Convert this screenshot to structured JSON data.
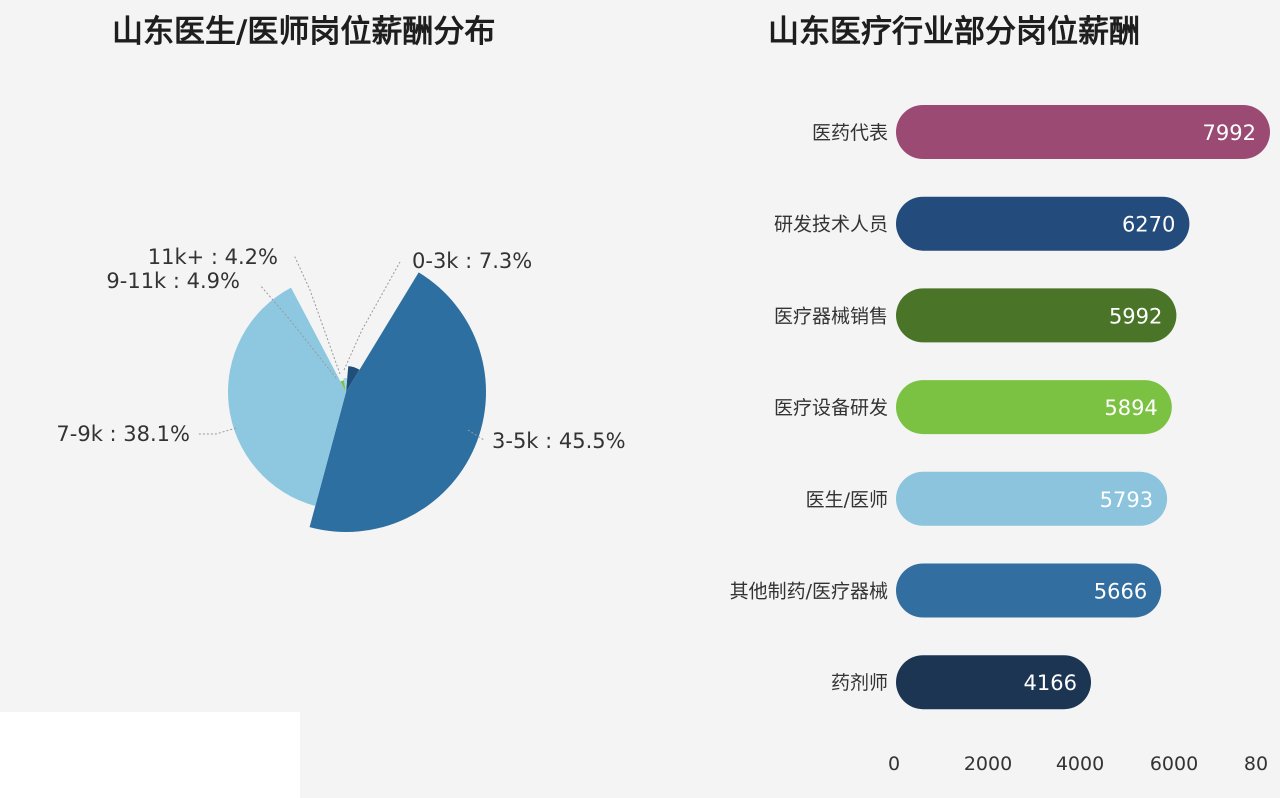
{
  "chart_data": [
    {
      "type": "pie",
      "title": "山东医生/医师岗位薪酬分布",
      "slices": [
        {
          "name": "0-3k",
          "value": 7.3,
          "label": "0-3k : 7.3%",
          "color": "#1f4f7a"
        },
        {
          "name": "3-5k",
          "value": 45.5,
          "label": "3-5k : 45.5%",
          "color": "#2c6fa0"
        },
        {
          "name": "7-9k",
          "value": 38.1,
          "label": "7-9k : 38.1%",
          "color": "#8ec8e0"
        },
        {
          "name": "9-11k",
          "value": 4.9,
          "label": "9-11k : 4.9%",
          "color": "#7fc24a"
        },
        {
          "name": "11k+",
          "value": 4.2,
          "label": "11k+ : 4.2%",
          "color": "#a7d6e6"
        }
      ]
    },
    {
      "type": "bar",
      "orientation": "horizontal",
      "title": "山东医疗行业部分岗位薪酬",
      "categories": [
        "医药代表",
        "研发技术人员",
        "医疗器械销售",
        "医疗设备研发",
        "医生/医师",
        "其他制药/医疗器械",
        "药剂师"
      ],
      "values": [
        7992,
        6270,
        5992,
        5894,
        5793,
        5666,
        4166
      ],
      "value_labels": [
        "7992",
        "6270",
        "5992",
        "5894",
        "5793",
        "5666",
        "4166"
      ],
      "colors": [
        "#9a4a73",
        "#234b7b",
        "#4a7528",
        "#7cc242",
        "#8bc4dc",
        "#326e9f",
        "#1b3553"
      ],
      "xlim": [
        0,
        8000
      ],
      "x_ticks": [
        "0",
        "2000",
        "4000",
        "6000",
        "80"
      ]
    }
  ]
}
